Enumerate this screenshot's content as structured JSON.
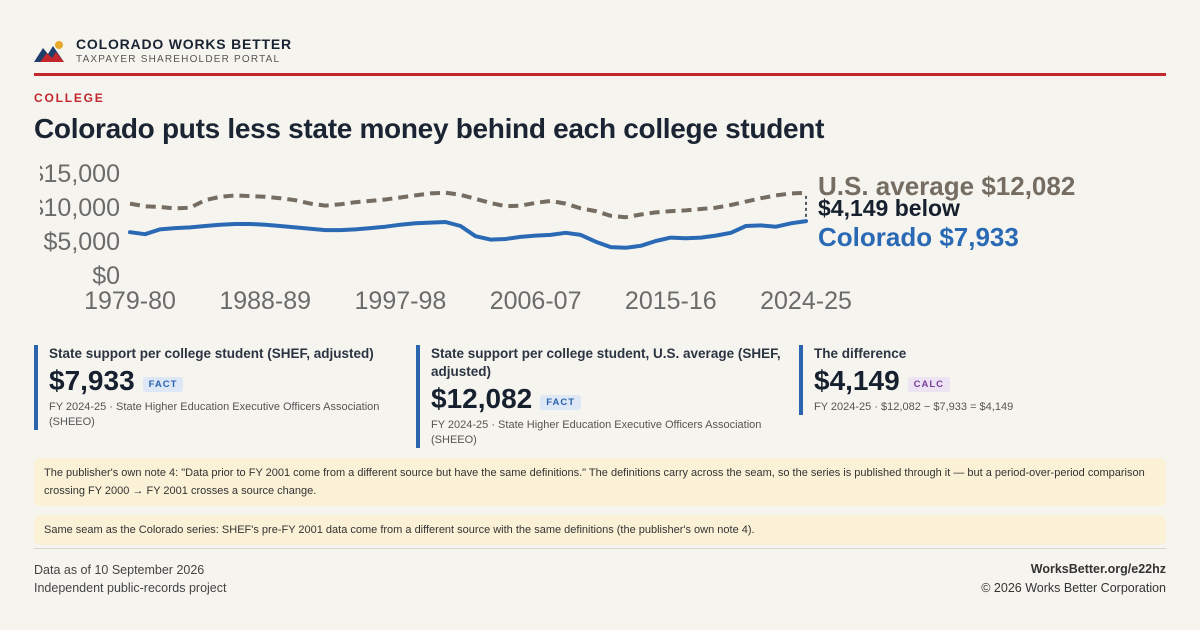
{
  "brand": {
    "name": "COLORADO WORKS BETTER",
    "subtitle": "TAXPAYER SHAREHOLDER PORTAL"
  },
  "kicker": "COLLEGE",
  "headline": "Colorado puts less state money behind each college student",
  "chart_data": {
    "type": "line",
    "x_labels": [
      "1979-80",
      "1988-89",
      "1997-98",
      "2006-07",
      "2015-16",
      "2024-25"
    ],
    "y_ticks": [
      "$0",
      "$5,000",
      "$10,000",
      "$15,000"
    ],
    "ylim": [
      0,
      15000
    ],
    "x_start_year": 1979,
    "x_end_year": 2024,
    "grid": false,
    "series": [
      {
        "name": "U.S. average",
        "label": "U.S. average $12,082",
        "color": "#756c62",
        "style": "dashed",
        "values": [
          10500,
          10100,
          10000,
          9800,
          9900,
          11000,
          11500,
          11700,
          11600,
          11500,
          11300,
          11000,
          10500,
          10200,
          10400,
          10700,
          10900,
          11100,
          11400,
          11700,
          12000,
          12100,
          11800,
          11200,
          10600,
          10100,
          10200,
          10600,
          10900,
          10500,
          9800,
          9400,
          8700,
          8500,
          8900,
          9200,
          9400,
          9500,
          9700,
          9900,
          10300,
          10800,
          11300,
          11700,
          12000,
          12082
        ]
      },
      {
        "name": "Colorado",
        "label": "Colorado $7,933",
        "color": "#2a6ab5",
        "style": "solid",
        "values": [
          6300,
          6000,
          6700,
          6900,
          7000,
          7200,
          7400,
          7500,
          7500,
          7400,
          7200,
          7000,
          6800,
          6600,
          6600,
          6700,
          6900,
          7100,
          7400,
          7600,
          7700,
          7800,
          7200,
          5700,
          5200,
          5300,
          5600,
          5800,
          5900,
          6200,
          5900,
          4900,
          4100,
          4000,
          4300,
          5000,
          5500,
          5400,
          5500,
          5800,
          6200,
          7200,
          7300,
          7100,
          7600,
          7933
        ]
      }
    ],
    "gap_label": "$4,149 below"
  },
  "cards": [
    {
      "label": "State support per college student (SHEF, adjusted)",
      "value": "$7,933",
      "badge": "FACT",
      "source": "FY 2024-25 · State Higher Education Executive Officers Association (SHEEO)",
      "color": "#2a64ad"
    },
    {
      "label": "State support per college student, U.S. average (SHEF, adjusted)",
      "value": "$12,082",
      "badge": "FACT",
      "source": "FY 2024-25 · State Higher Education Executive Officers Association (SHEEO)",
      "color": "#2a64ad"
    },
    {
      "label": "The difference",
      "value": "$4,149",
      "badge": "CALC",
      "source": "FY 2024-25 · $12,082 − $7,933 = $4,149",
      "color": "#2a64ad"
    }
  ],
  "notes": [
    "The publisher's own note 4: \"Data prior to FY 2001 come from a different source but have the same definitions.\" The definitions carry across the seam, so the series is published through it — but a period-over-period comparison crossing FY 2000 → FY 2001 crosses a source change.",
    "Same seam as the Colorado series: SHEF's pre-FY 2001 data come from a different source with the same definitions (the publisher's own note 4)."
  ],
  "footer": {
    "data_as_of": "Data as of 10 September 2026",
    "project": "Independent public-records project",
    "url": "WorksBetter.org/e22hz",
    "copyright": "© 2026 Works Better Corporation"
  }
}
